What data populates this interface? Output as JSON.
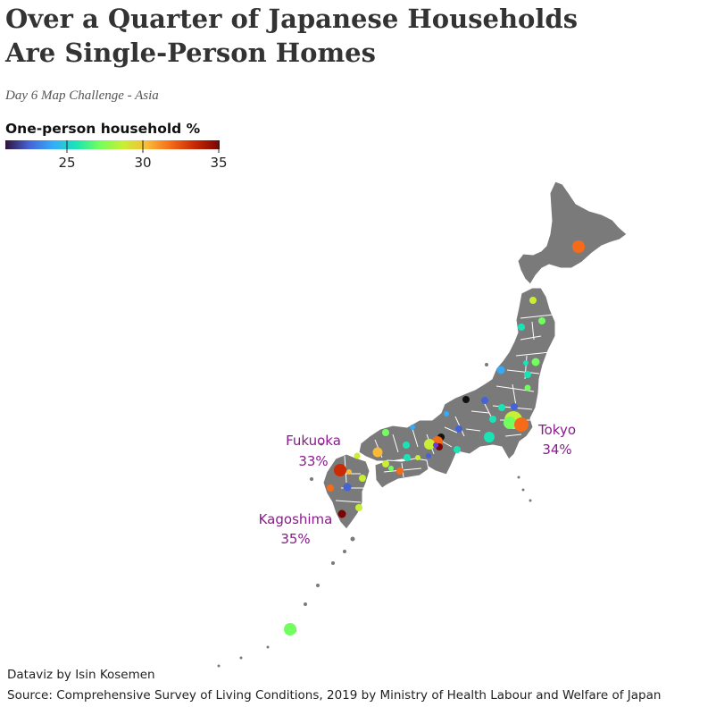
{
  "title_line1": "Over a Quarter of Japanese Households",
  "title_line2": "Are Single-Person Homes",
  "subtitle": "Day 6 Map Challenge - Asia",
  "legend": {
    "title": "One-person household %",
    "ticks": [
      "25",
      "30",
      "35"
    ],
    "stops": [
      "#30123b",
      "#4662d7",
      "#36aaf9",
      "#1ae4b6",
      "#72fe5e",
      "#c8ef34",
      "#faba39",
      "#f66b19",
      "#ca2a04",
      "#7a0403"
    ]
  },
  "annotations": {
    "fukuoka_name": "Fukuoka",
    "fukuoka_value": "33%",
    "tokyo_name": "Tokyo",
    "tokyo_value": "34%",
    "kagoshima_name": "Kagoshima",
    "kagoshima_value": "35%"
  },
  "footer": {
    "credit": "Dataviz by Isin Kosemen",
    "source": "Source: Comprehensive Survey of Living Conditions, 2019 by Ministry of Health Labour and Welfare of Japan"
  },
  "colors": {
    "land": "#7a7a7a",
    "border": "#ffffff",
    "annotation": "#8a1a8c"
  }
}
